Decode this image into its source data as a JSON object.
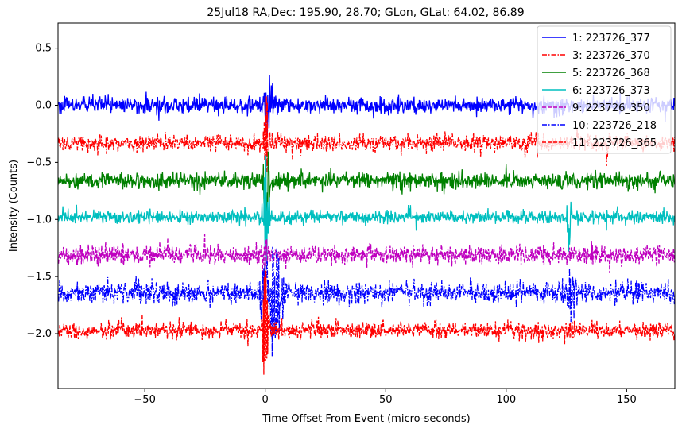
{
  "chart_data": {
    "type": "line",
    "title": "25Jul18 RA,Dec:  195.90,  28.70; GLon, GLat:   64.02,  86.89",
    "xlabel": "Time Offset From Event (micro-seconds)",
    "ylabel": "Intensity (Counts)",
    "xlim": [
      -86,
      170
    ],
    "ylim": [
      -2.48,
      0.72
    ],
    "xticks": [
      -50,
      0,
      50,
      100,
      150
    ],
    "xtick_labels": [
      "−50",
      "0",
      "50",
      "100",
      "150"
    ],
    "yticks": [
      0.5,
      0.0,
      -0.5,
      -1.0,
      -1.5,
      -2.0
    ],
    "ytick_labels": [
      "0.5",
      "0.0",
      "−0.5",
      "−1.0",
      "−1.5",
      "−2.0"
    ],
    "legend_position": "top-right",
    "series": [
      {
        "name": "1: 223726_377",
        "offset": 0.0,
        "noise": 0.035,
        "color": "#0000ff",
        "style": "solid",
        "bursts": [
          {
            "x": 1.5,
            "amp": 0.22,
            "width": 3
          }
        ]
      },
      {
        "name": "3: 223726_370",
        "offset": -0.33,
        "noise": 0.035,
        "color": "#ff0000",
        "style": "dashdot",
        "bursts": [
          {
            "x": 0.5,
            "amp": 0.3,
            "width": 2
          },
          {
            "x": 142,
            "amp": 0.15,
            "width": 1
          }
        ]
      },
      {
        "name": "5: 223726_368",
        "offset": -0.66,
        "noise": 0.035,
        "color": "#008000",
        "style": "solid",
        "bursts": [
          {
            "x": 0.5,
            "amp": 0.35,
            "width": 2
          }
        ]
      },
      {
        "name": "6: 223726_373",
        "offset": -0.98,
        "noise": 0.028,
        "color": "#00bfbf",
        "style": "solid",
        "bursts": [
          {
            "x": 0.3,
            "amp": 0.4,
            "width": 2
          },
          {
            "x": 126,
            "amp": 0.18,
            "width": 1.5
          }
        ]
      },
      {
        "name": "9: 223726_350",
        "offset": -1.31,
        "noise": 0.04,
        "color": "#bf00bf",
        "style": "dashed",
        "bursts": [
          {
            "x": 0,
            "amp": 0.12,
            "width": 2
          }
        ]
      },
      {
        "name": "10: 223726_218",
        "offset": -1.64,
        "noise": 0.045,
        "color": "#0000ff",
        "style": "dashdot",
        "bursts": [
          {
            "x": 3,
            "amp": 0.32,
            "width": 8
          },
          {
            "x": 127,
            "amp": 0.25,
            "width": 3
          }
        ]
      },
      {
        "name": "11: 223726_365",
        "offset": -1.97,
        "noise": 0.035,
        "color": "#ff0000",
        "style": "dashed",
        "bursts": [
          {
            "x": 0,
            "amp": 0.4,
            "width": 2
          }
        ]
      }
    ]
  }
}
